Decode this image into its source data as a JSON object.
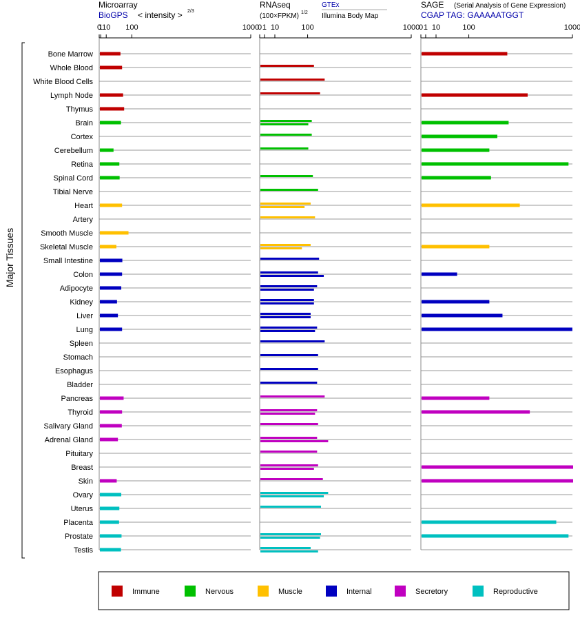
{
  "chart_data": {
    "type": "bar",
    "y_axis_label": "Major Tissues",
    "tick_labels": [
      "0",
      "1",
      "10",
      "100",
      "1000"
    ],
    "tick_values": [
      0,
      1,
      10,
      100,
      1000
    ],
    "panels": [
      {
        "id": "microarray",
        "title": "Microarray",
        "source": "BioGPS",
        "scale_label": "< intensity >",
        "scale_exponent": "2/3",
        "transform": "cuberoot2",
        "xlim": [
          0,
          1000
        ]
      },
      {
        "id": "rnaseq",
        "title": "RNAseq",
        "scale_label": "(100×FPKM)",
        "scale_exponent": "1/2",
        "source_top": "GTEx",
        "source_bottom": "Illumina Body Map",
        "transform": "sqrt",
        "xlim": [
          0,
          1000
        ]
      },
      {
        "id": "sage",
        "title": "SAGE",
        "subtitle": "(Serial Analysis of Gene Expression)",
        "source": "CGAP TAG: GAAAAATGGT",
        "transform": "sqrt",
        "xlim": [
          0,
          1000
        ]
      }
    ],
    "groups": [
      {
        "name": "Immune",
        "color": "#c00000"
      },
      {
        "name": "Nervous",
        "color": "#00c000"
      },
      {
        "name": "Muscle",
        "color": "#ffc000"
      },
      {
        "name": "Internal",
        "color": "#0000c0"
      },
      {
        "name": "Secretory",
        "color": "#c000c0"
      },
      {
        "name": "Reproductive",
        "color": "#00c0c0"
      }
    ],
    "tissues": [
      {
        "name": "Bone Marrow",
        "group": 0,
        "microarray": 50,
        "rnaseq": [],
        "sage": 320
      },
      {
        "name": "Whole Blood",
        "group": 0,
        "microarray": 56,
        "rnaseq": [
          125
        ],
        "sage": null
      },
      {
        "name": "White Blood Cells",
        "group": 0,
        "microarray": null,
        "rnaseq": [
          180
        ],
        "sage": null
      },
      {
        "name": "Lymph Node",
        "group": 0,
        "microarray": 60,
        "rnaseq": [
          155
        ],
        "sage": 490
      },
      {
        "name": "Thymus",
        "group": 0,
        "microarray": 64,
        "rnaseq": [],
        "sage": null
      },
      {
        "name": "Brain",
        "group": 1,
        "microarray": 52,
        "rnaseq": [
          115,
          100
        ],
        "sage": 330
      },
      {
        "name": "Cortex",
        "group": 1,
        "microarray": null,
        "rnaseq": [
          115
        ],
        "sage": 250
      },
      {
        "name": "Cerebellum",
        "group": 1,
        "microarray": 27,
        "rnaseq": [
          100
        ],
        "sage": 200
      },
      {
        "name": "Retina",
        "group": 1,
        "microarray": 46,
        "rnaseq": [],
        "sage": 940
      },
      {
        "name": "Spinal Cord",
        "group": 1,
        "microarray": 47,
        "rnaseq": [
          120
        ],
        "sage": 210
      },
      {
        "name": "Tibial Nerve",
        "group": 1,
        "microarray": null,
        "rnaseq": [
          145
        ],
        "sage": null
      },
      {
        "name": "Heart",
        "group": 2,
        "microarray": 56,
        "rnaseq": [
          110,
          85
        ],
        "sage": 420
      },
      {
        "name": "Artery",
        "group": 2,
        "microarray": null,
        "rnaseq": [
          130
        ],
        "sage": null
      },
      {
        "name": "Smooth Muscle",
        "group": 2,
        "microarray": 82,
        "rnaseq": [],
        "sage": null
      },
      {
        "name": "Skeletal Muscle",
        "group": 2,
        "microarray": 36,
        "rnaseq": [
          110,
          75
        ],
        "sage": 200
      },
      {
        "name": "Small Intestine",
        "group": 3,
        "microarray": 57,
        "rnaseq": [
          150
        ],
        "sage": null
      },
      {
        "name": "Colon",
        "group": 3,
        "microarray": 56,
        "rnaseq": [
          145,
          175
        ],
        "sage": 55
      },
      {
        "name": "Adipocyte",
        "group": 3,
        "microarray": 53,
        "rnaseq": [
          140,
          125
        ],
        "sage": null
      },
      {
        "name": "Kidney",
        "group": 3,
        "microarray": 38,
        "rnaseq": [
          125,
          125
        ],
        "sage": 200
      },
      {
        "name": "Liver",
        "group": 3,
        "microarray": 41,
        "rnaseq": [
          110,
          110
        ],
        "sage": 285
      },
      {
        "name": "Lung",
        "group": 3,
        "microarray": 56,
        "rnaseq": [
          140,
          130
        ],
        "sage": 990
      },
      {
        "name": "Spleen",
        "group": 3,
        "microarray": null,
        "rnaseq": [
          180
        ],
        "sage": null
      },
      {
        "name": "Stomach",
        "group": 3,
        "microarray": null,
        "rnaseq": [
          145
        ],
        "sage": null
      },
      {
        "name": "Esophagus",
        "group": 3,
        "microarray": null,
        "rnaseq": [
          145
        ],
        "sage": null
      },
      {
        "name": "Bladder",
        "group": 3,
        "microarray": null,
        "rnaseq": [
          140
        ],
        "sage": null
      },
      {
        "name": "Pancreas",
        "group": 4,
        "microarray": 62,
        "rnaseq": [
          180
        ],
        "sage": 200
      },
      {
        "name": "Thyroid",
        "group": 4,
        "microarray": 56,
        "rnaseq": [
          140,
          130
        ],
        "sage": 510
      },
      {
        "name": "Salivary Gland",
        "group": 4,
        "microarray": 55,
        "rnaseq": [
          145
        ],
        "sage": null
      },
      {
        "name": "Adrenal Gland",
        "group": 4,
        "microarray": 41,
        "rnaseq": [
          140,
          200
        ],
        "sage": null
      },
      {
        "name": "Pituitary",
        "group": 4,
        "microarray": null,
        "rnaseq": [
          140
        ],
        "sage": null
      },
      {
        "name": "Breast",
        "group": 4,
        "microarray": null,
        "rnaseq": [
          145,
          125
        ],
        "sage": 1000
      },
      {
        "name": "Skin",
        "group": 4,
        "microarray": 37,
        "rnaseq": [
          170
        ],
        "sage": 1000
      },
      {
        "name": "Ovary",
        "group": 5,
        "microarray": 53,
        "rnaseq": [
          200,
          175
        ],
        "sage": null
      },
      {
        "name": "Uterus",
        "group": 5,
        "microarray": 46,
        "rnaseq": [
          160
        ],
        "sage": null
      },
      {
        "name": "Placenta",
        "group": 5,
        "microarray": 45,
        "rnaseq": [],
        "sage": 790
      },
      {
        "name": "Prostate",
        "group": 5,
        "microarray": 54,
        "rnaseq": [
          160,
          155
        ],
        "sage": 940
      },
      {
        "name": "Testis",
        "group": 5,
        "microarray": 52,
        "rnaseq": [
          110,
          145
        ],
        "sage": null
      }
    ]
  }
}
